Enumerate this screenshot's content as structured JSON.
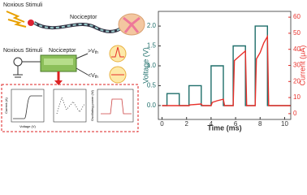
{
  "diagram": {
    "stimulus_top": "Noxious Stimuli",
    "nociceptor_top": "Nociceptor",
    "stimulus_mid": "Noxious Stimuli",
    "nociceptor_mid": "Nociceptor",
    "above_threshold": ">V",
    "above_threshold_sub": "th",
    "below_threshold": "<V",
    "below_threshold_sub": "th",
    "inset_y1": "Current (A)",
    "inset_x1": "Voltage (V)",
    "inset_y3": "Oscillating power (W)"
  },
  "chart_data": {
    "type": "line",
    "xlabel": "Time (ms)",
    "ylabel": "Voltage (V)",
    "y2label": "Current (μA)",
    "xlim": [
      -0.3,
      10.5
    ],
    "xticks": [
      0,
      2,
      4,
      6,
      8,
      10
    ],
    "ylim": [
      -0.35,
      2.37
    ],
    "yticks": [
      {
        "value": 0,
        "label": "0.0"
      },
      0.5,
      {
        "value": 1,
        "label": "1.0"
      },
      1.5,
      {
        "value": 2,
        "label": "2.0"
      }
    ],
    "y2lim": [
      -3.6,
      63.6
    ],
    "y2ticks": [
      0,
      10,
      20,
      30,
      40,
      50,
      60
    ],
    "series": [
      {
        "name": "Voltage",
        "color": "#1f6e6a",
        "x": [
          0,
          0.4,
          0.4,
          1.4,
          1.4,
          2.2,
          2.2,
          3.2,
          3.2,
          4.0,
          4.0,
          5.0,
          5.0,
          5.8,
          5.8,
          6.8,
          6.8,
          7.6,
          7.6,
          8.6,
          8.6,
          10.5
        ],
        "values": [
          0,
          0,
          0.3,
          0.3,
          0,
          0,
          0.5,
          0.5,
          0,
          0,
          1,
          1,
          0,
          0,
          1.5,
          1.5,
          0,
          0,
          2,
          2,
          0,
          0
        ]
      },
      {
        "name": "Current",
        "color": "#e8302a",
        "axis": "y2",
        "x": [
          0,
          0.4,
          0.5,
          1.4,
          1.5,
          2.2,
          2.3,
          3.2,
          3.3,
          4.0,
          4.1,
          4.5,
          5.0,
          5.1,
          5.8,
          5.9,
          6.2,
          6.5,
          6.8,
          6.9,
          7.6,
          7.7,
          8.0,
          8.3,
          8.6,
          8.7,
          10.5
        ],
        "values": [
          5,
          5,
          5,
          5,
          5,
          5,
          5.5,
          6,
          5,
          5,
          7,
          8,
          9,
          5,
          5,
          33,
          35,
          37,
          39,
          5,
          5,
          34,
          38,
          44,
          48,
          5,
          5
        ]
      }
    ]
  }
}
